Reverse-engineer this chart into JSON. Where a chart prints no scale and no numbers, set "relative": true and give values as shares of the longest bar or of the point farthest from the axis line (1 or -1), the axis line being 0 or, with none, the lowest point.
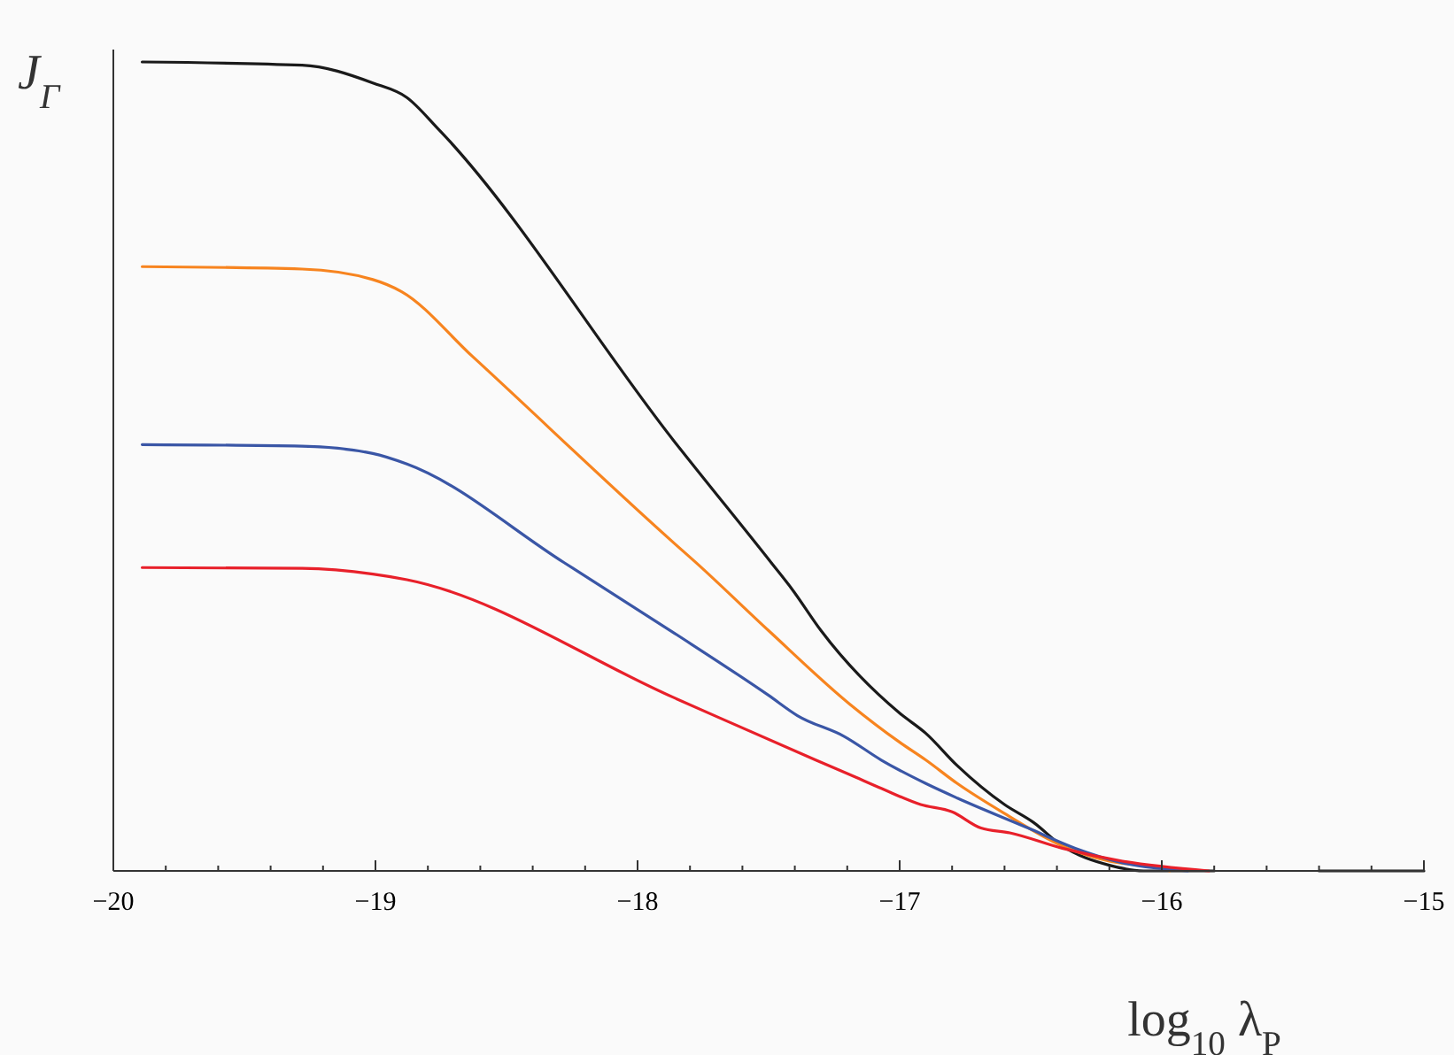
{
  "chart_data": {
    "type": "line",
    "relative": true,
    "xlabel": "log$_{10}$ λ$_{P}$",
    "ylabel": "J$_{Γ}$",
    "xlim": [
      -20,
      -15
    ],
    "xticks": [
      {
        "value": -20,
        "label": "−20"
      },
      {
        "value": -19,
        "label": "−19"
      },
      {
        "value": -18,
        "label": "−18"
      },
      {
        "value": -17,
        "label": "−17"
      },
      {
        "value": -16,
        "label": "−16"
      },
      {
        "value": -15,
        "label": "−15"
      },
      {
        "value": -19.8,
        "label": null
      },
      {
        "value": -19.6,
        "label": null
      },
      {
        "value": -19.4,
        "label": null
      },
      {
        "value": -19.2,
        "label": null
      },
      {
        "value": -18.8,
        "label": null
      },
      {
        "value": -18.6,
        "label": null
      },
      {
        "value": -18.4,
        "label": null
      },
      {
        "value": -18.2,
        "label": null
      },
      {
        "value": -17.8,
        "label": null
      },
      {
        "value": -17.6,
        "label": null
      },
      {
        "value": -17.4,
        "label": null
      },
      {
        "value": -17.2,
        "label": null
      },
      {
        "value": -16.8,
        "label": null
      },
      {
        "value": -16.6,
        "label": null
      },
      {
        "value": -16.4,
        "label": null
      },
      {
        "value": -16.2,
        "label": null
      },
      {
        "value": -15.8,
        "label": null
      },
      {
        "value": -15.6,
        "label": null
      },
      {
        "value": -15.4,
        "label": null
      },
      {
        "value": -15.2,
        "label": null
      }
    ],
    "marker": "none",
    "line_style": "solid",
    "grid": false,
    "series": [
      {
        "color": "#1a1a1a",
        "x": [
          -19.89,
          -19.28,
          -19.01,
          -18.88,
          -18.76,
          -17.86,
          -17.49,
          -17.41,
          -17.3,
          -17.0,
          -16.9,
          -16.78,
          -16.6,
          -16.49,
          -16.38,
          -16.2,
          -16.07,
          -15.8,
          -15.6,
          -15.4,
          -15.0
        ],
        "values": [
          1.0,
          0.996,
          0.974,
          0.956,
          0.917,
          0.531,
          0.381,
          0.348,
          0.297,
          0.195,
          0.17,
          0.13,
          0.082,
          0.06,
          0.031,
          0.007,
          0,
          0,
          null,
          0,
          0
        ]
      },
      {
        "color": "#f7841f",
        "x": [
          -19.89,
          -19.28,
          -19.01,
          -18.9,
          -18.63,
          -17.86,
          -17.78,
          -17.5,
          -17.19,
          -17.0,
          -16.9,
          -16.78,
          -16.6,
          -16.38,
          -16.2,
          -16.0,
          -15.97
        ],
        "values": [
          0.747,
          0.744,
          0.731,
          0.716,
          0.636,
          0.405,
          0.382,
          0.297,
          0.206,
          0.159,
          0.137,
          0.108,
          0.071,
          0.031,
          0.012,
          0.003,
          0
        ]
      },
      {
        "color": "#3a56a6",
        "x": [
          -19.89,
          -19.28,
          -19.01,
          -18.88,
          -18.28,
          -17.86,
          -17.5,
          -17.39,
          -17.21,
          -17.07,
          -16.9,
          -16.78,
          -16.51,
          -16.33,
          -16.15,
          -15.9
        ],
        "values": [
          0.527,
          0.525,
          0.516,
          0.503,
          0.381,
          0.294,
          0.217,
          0.192,
          0.166,
          0.137,
          0.108,
          0.09,
          0.053,
          0.028,
          0.01,
          0
        ]
      },
      {
        "color": "#e8202a",
        "x": [
          -19.89,
          -19.28,
          -19.01,
          -18.88,
          -17.86,
          -17.32,
          -17.19,
          -17.07,
          -16.92,
          -16.8,
          -16.69,
          -16.58,
          -16.38,
          -16.15,
          -15.82
        ],
        "values": [
          0.375,
          0.374,
          0.367,
          0.36,
          0.214,
          0.137,
          0.119,
          0.102,
          0.082,
          0.073,
          0.053,
          0.047,
          0.028,
          0.012,
          0
        ]
      }
    ]
  }
}
